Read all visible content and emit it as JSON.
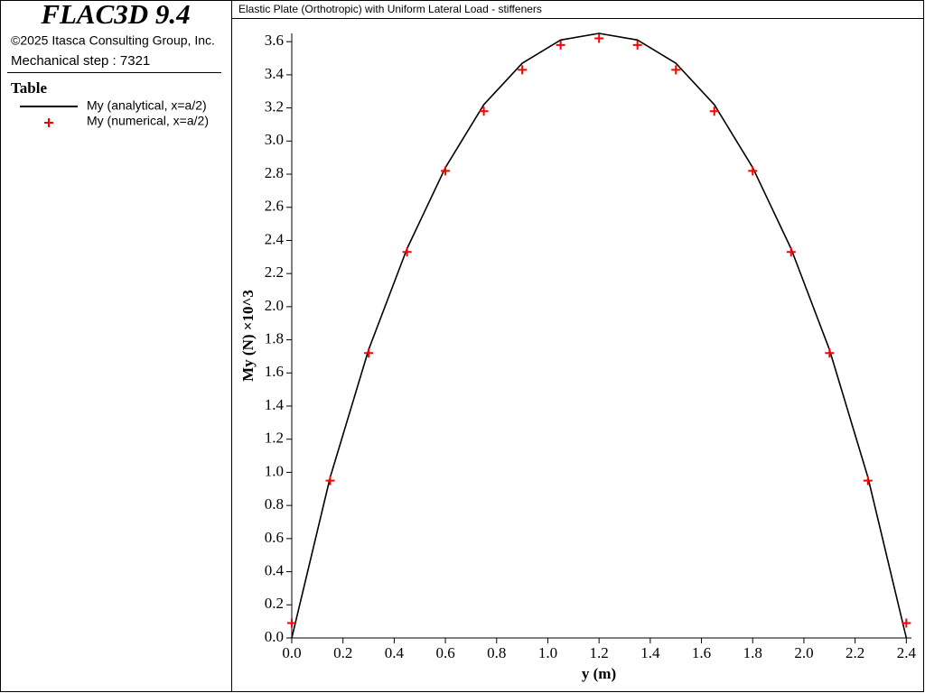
{
  "header": {
    "product": "FLAC3D 9.4",
    "copyright": "©2025 Itasca Consulting Group, Inc.",
    "step": "Mechanical step : 7321",
    "legend_title": "Table"
  },
  "chart_data": {
    "type": "line",
    "title": "Elastic Plate (Orthotropic) with Uniform Lateral Load - stiffeners",
    "x_label": "y (m)",
    "y_label": "My (N) ×10^3",
    "x": [
      0,
      0.15,
      0.3,
      0.45,
      0.6,
      0.75,
      0.9,
      1.05,
      1.2,
      1.35,
      1.5,
      1.65,
      1.8,
      1.95,
      2.1,
      2.25,
      2.4
    ],
    "series": [
      {
        "name": "My (analytical, x=a/2)",
        "color": "#000000",
        "marker": "none",
        "values": [
          0,
          0.97,
          1.74,
          2.35,
          2.84,
          3.22,
          3.47,
          3.61,
          3.65,
          3.61,
          3.47,
          3.22,
          2.84,
          2.35,
          1.74,
          0.97,
          0
        ]
      },
      {
        "name": "My (numerical, x=a/2)",
        "color": "#ff0000",
        "marker": "plus",
        "values": [
          0.09,
          0.95,
          1.72,
          2.33,
          2.82,
          3.18,
          3.43,
          3.58,
          3.62,
          3.58,
          3.43,
          3.18,
          2.82,
          2.33,
          1.72,
          0.95,
          0.09
        ]
      }
    ],
    "xlim": [
      0,
      2.42
    ],
    "ylim": [
      0,
      3.65
    ],
    "xticks": [
      {
        "value": 0,
        "label": "0.0"
      },
      {
        "value": 0.2,
        "label": "0.2"
      },
      {
        "value": 0.4,
        "label": "0.4"
      },
      {
        "value": 0.6,
        "label": "0.6"
      },
      {
        "value": 0.8,
        "label": "0.8"
      },
      {
        "value": 1,
        "label": "1.0"
      },
      {
        "value": 1.2,
        "label": "1.2"
      },
      {
        "value": 1.4,
        "label": "1.4"
      },
      {
        "value": 1.6,
        "label": "1.6"
      },
      {
        "value": 1.8,
        "label": "1.8"
      },
      {
        "value": 2,
        "label": "2.0"
      },
      {
        "value": 2.2,
        "label": "2.2"
      },
      {
        "value": 2.4,
        "label": "2.4"
      }
    ],
    "yticks": [
      {
        "value": 0,
        "label": "0.0"
      },
      {
        "value": 0.2,
        "label": "0.2"
      },
      {
        "value": 0.4,
        "label": "0.4"
      },
      {
        "value": 0.6,
        "label": "0.6"
      },
      {
        "value": 0.8,
        "label": "0.8"
      },
      {
        "value": 1,
        "label": "1.0"
      },
      {
        "value": 1.2,
        "label": "1.2"
      },
      {
        "value": 1.4,
        "label": "1.4"
      },
      {
        "value": 1.6,
        "label": "1.6"
      },
      {
        "value": 1.8,
        "label": "1.8"
      },
      {
        "value": 2,
        "label": "2.0"
      },
      {
        "value": 2.2,
        "label": "2.2"
      },
      {
        "value": 2.4,
        "label": "2.4"
      },
      {
        "value": 2.6,
        "label": "2.6"
      },
      {
        "value": 2.8,
        "label": "2.8"
      },
      {
        "value": 3,
        "label": "3.0"
      },
      {
        "value": 3.2,
        "label": "3.2"
      },
      {
        "value": 3.4,
        "label": "3.4"
      },
      {
        "value": 3.6,
        "label": "3.6"
      }
    ],
    "grid": false
  }
}
